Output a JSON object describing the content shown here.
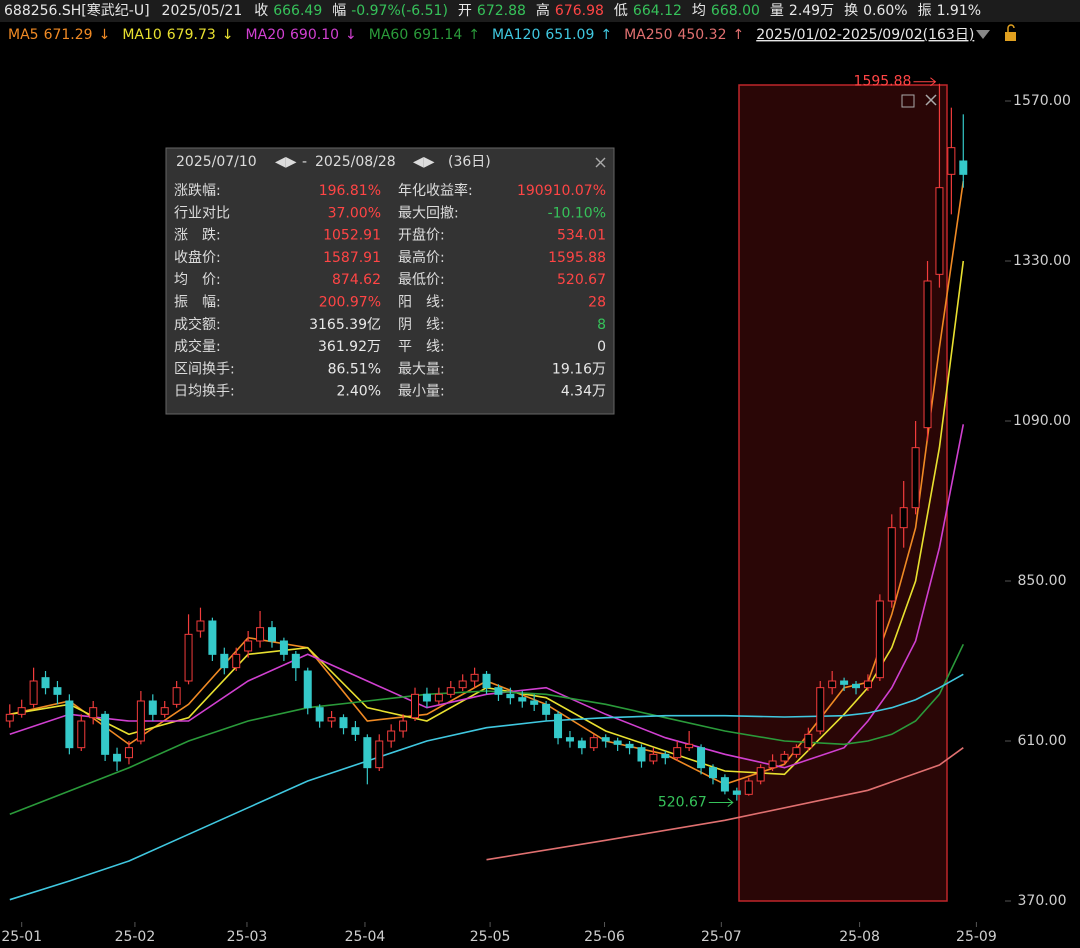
{
  "header": {
    "symbol": "688256.SH[寒武纪-U]",
    "date": "2025/05/21",
    "quote": [
      {
        "label": "收",
        "value": "666.49",
        "tone": "down"
      },
      {
        "label": "幅",
        "value": "-0.97%(-6.51)",
        "tone": "down"
      },
      {
        "label": "开",
        "value": "672.88",
        "tone": "down"
      },
      {
        "label": "高",
        "value": "676.98",
        "tone": "up"
      },
      {
        "label": "低",
        "value": "664.12",
        "tone": "down"
      },
      {
        "label": "均",
        "value": "668.00",
        "tone": "down"
      },
      {
        "label": "量",
        "value": "2.49万",
        "tone": "plain"
      },
      {
        "label": "换",
        "value": "0.60%",
        "tone": "plain"
      },
      {
        "label": "振",
        "value": "1.91%",
        "tone": "plain"
      }
    ],
    "ma_legend": [
      {
        "value": "671.29",
        "arrow": "↓"
      },
      {
        "value": "679.73",
        "arrow": "↓"
      },
      {
        "value": "690.10",
        "arrow": "↓"
      },
      {
        "value": "691.14",
        "arrow": "↑"
      },
      {
        "value": "651.09",
        "arrow": "↑"
      },
      {
        "value": "450.32",
        "arrow": "↑"
      }
    ],
    "range": "2025/01/02-2025/09/02(163日)"
  },
  "panel": {
    "start": "2025/07/10",
    "end": "2025/08/28",
    "days": "(36日)",
    "rows": [
      [
        {
          "label": "涨跌幅:",
          "value": "196.81%",
          "tone": "up"
        },
        {
          "label": "年化收益率:",
          "value": "190910.07%",
          "tone": "up"
        }
      ],
      [
        {
          "label": "行业对比",
          "value": "37.00%",
          "tone": "up"
        },
        {
          "label": "最大回撤:",
          "value": "-10.10%",
          "tone": "down"
        }
      ],
      [
        {
          "label": "涨　跌:",
          "value": "1052.91",
          "tone": "up"
        },
        {
          "label": "开盘价:",
          "value": "534.01",
          "tone": "up"
        }
      ],
      [
        {
          "label": "收盘价:",
          "value": "1587.91",
          "tone": "up"
        },
        {
          "label": "最高价:",
          "value": "1595.88",
          "tone": "up"
        }
      ],
      [
        {
          "label": "均　价:",
          "value": "874.62",
          "tone": "up"
        },
        {
          "label": "最低价:",
          "value": "520.67",
          "tone": "up"
        }
      ],
      [
        {
          "label": "振　幅:",
          "value": "200.97%",
          "tone": "up"
        },
        {
          "label": "阳　线:",
          "value": "28",
          "tone": "up"
        }
      ],
      [
        {
          "label": "成交额:",
          "value": "3165.39亿",
          "tone": "plain"
        },
        {
          "label": "阴　线:",
          "value": "8",
          "tone": "down"
        }
      ],
      [
        {
          "label": "成交量:",
          "value": "361.92万",
          "tone": "plain"
        },
        {
          "label": "平　线:",
          "value": "0",
          "tone": "plain"
        }
      ],
      [
        {
          "label": "区间换手:",
          "value": "86.51%",
          "tone": "plain"
        },
        {
          "label": "最大量:",
          "value": "19.16万",
          "tone": "plain"
        }
      ],
      [
        {
          "label": "日均换手:",
          "value": "2.40%",
          "tone": "plain"
        },
        {
          "label": "最小量:",
          "value": "4.34万",
          "tone": "plain"
        }
      ]
    ]
  },
  "chart_data": {
    "type": "candlestick",
    "up_color": "#f23c3c",
    "down_color": "#35c9c9",
    "xlim": [
      -0.4,
      83.5
    ],
    "ylim": [
      349,
      1654
    ],
    "xticks": [
      {
        "value": 1,
        "label": "25-01"
      },
      {
        "value": 10.5,
        "label": "25-02"
      },
      {
        "value": 19.9,
        "label": "25-03"
      },
      {
        "value": 29.8,
        "label": "25-04"
      },
      {
        "value": 40.3,
        "label": "25-05"
      },
      {
        "value": 49.9,
        "label": "25-06"
      },
      {
        "value": 59.7,
        "label": "25-07"
      },
      {
        "value": 71.3,
        "label": "25-08"
      },
      {
        "value": 81.1,
        "label": "25-09"
      }
    ],
    "yticks": [
      {
        "value": 370,
        "label": "370.00"
      },
      {
        "value": 610,
        "label": "610.00"
      },
      {
        "value": 850,
        "label": "850.00"
      },
      {
        "value": 1090,
        "label": "1090.00"
      },
      {
        "value": 1330,
        "label": "1330.00"
      },
      {
        "value": 1570,
        "label": "1570.00"
      }
    ],
    "candles": [
      [
        640,
        665,
        630,
        650
      ],
      [
        650,
        672,
        645,
        660
      ],
      [
        665,
        720,
        660,
        700
      ],
      [
        705,
        715,
        680,
        690
      ],
      [
        690,
        700,
        665,
        680
      ],
      [
        670,
        680,
        590,
        600
      ],
      [
        600,
        650,
        595,
        640
      ],
      [
        645,
        670,
        635,
        660
      ],
      [
        650,
        655,
        580,
        590
      ],
      [
        590,
        600,
        565,
        580
      ],
      [
        585,
        610,
        575,
        600
      ],
      [
        610,
        685,
        605,
        670
      ],
      [
        670,
        680,
        640,
        650
      ],
      [
        650,
        670,
        645,
        660
      ],
      [
        665,
        700,
        660,
        690
      ],
      [
        700,
        800,
        695,
        770
      ],
      [
        775,
        810,
        765,
        790
      ],
      [
        790,
        795,
        730,
        740
      ],
      [
        740,
        750,
        710,
        720
      ],
      [
        720,
        750,
        715,
        740
      ],
      [
        745,
        775,
        735,
        760
      ],
      [
        760,
        805,
        750,
        780
      ],
      [
        780,
        790,
        750,
        760
      ],
      [
        760,
        765,
        730,
        740
      ],
      [
        740,
        745,
        700,
        720
      ],
      [
        715,
        720,
        650,
        660
      ],
      [
        660,
        665,
        630,
        640
      ],
      [
        640,
        655,
        630,
        645
      ],
      [
        645,
        650,
        620,
        630
      ],
      [
        630,
        640,
        610,
        620
      ],
      [
        615,
        620,
        545,
        570
      ],
      [
        570,
        620,
        565,
        610
      ],
      [
        610,
        635,
        600,
        625
      ],
      [
        625,
        650,
        615,
        640
      ],
      [
        645,
        690,
        640,
        680
      ],
      [
        680,
        690,
        660,
        670
      ],
      [
        670,
        690,
        665,
        680
      ],
      [
        680,
        700,
        675,
        690
      ],
      [
        690,
        710,
        685,
        700
      ],
      [
        700,
        720,
        690,
        710
      ],
      [
        710,
        715,
        680,
        690
      ],
      [
        690,
        695,
        670,
        680
      ],
      [
        680,
        690,
        665,
        675
      ],
      [
        675,
        685,
        660,
        670
      ],
      [
        670,
        680,
        655,
        665
      ],
      [
        665,
        670,
        640,
        650
      ],
      [
        650,
        655,
        605,
        615
      ],
      [
        615,
        625,
        600,
        610
      ],
      [
        610,
        615,
        590,
        600
      ],
      [
        600,
        620,
        595,
        615
      ],
      [
        615,
        620,
        600,
        610
      ],
      [
        610,
        615,
        595,
        605
      ],
      [
        605,
        610,
        590,
        600
      ],
      [
        600,
        605,
        570,
        580
      ],
      [
        580,
        600,
        575,
        590
      ],
      [
        590,
        595,
        575,
        585
      ],
      [
        585,
        610,
        580,
        600
      ],
      [
        600,
        625,
        595,
        605
      ],
      [
        600,
        605,
        560,
        570
      ],
      [
        570,
        575,
        545,
        555
      ],
      [
        555,
        560,
        530,
        535
      ],
      [
        535,
        540,
        520.67,
        530
      ],
      [
        530,
        555,
        528,
        550
      ],
      [
        550,
        575,
        545,
        570
      ],
      [
        570,
        590,
        565,
        580
      ],
      [
        580,
        595,
        575,
        590
      ],
      [
        590,
        605,
        585,
        600
      ],
      [
        600,
        630,
        595,
        620
      ],
      [
        625,
        700,
        620,
        690
      ],
      [
        690,
        715,
        680,
        700
      ],
      [
        700,
        705,
        685,
        695
      ],
      [
        695,
        700,
        680,
        690
      ],
      [
        690,
        710,
        685,
        700
      ],
      [
        705,
        830,
        700,
        820
      ],
      [
        820,
        950,
        810,
        930
      ],
      [
        930,
        1000,
        900,
        960
      ],
      [
        960,
        1090,
        950,
        1050
      ],
      [
        1080,
        1330,
        1060,
        1300
      ],
      [
        1310,
        1595.88,
        1290,
        1440
      ],
      [
        1460,
        1560,
        1400,
        1500
      ],
      [
        1480,
        1550,
        1440,
        1460
      ]
    ],
    "series": [
      {
        "name": "MA5",
        "color": "#f08a24",
        "x": [
          0,
          5,
          10,
          15,
          20,
          25,
          30,
          35,
          40,
          45,
          50,
          55,
          60,
          65,
          70,
          72,
          74,
          76,
          78,
          80
        ],
        "values": [
          650,
          670,
          605,
          665,
          765,
          750,
          640,
          650,
          700,
          665,
          610,
          590,
          545,
          575,
          690,
          698,
          800,
          930,
          1200,
          1450
        ]
      },
      {
        "name": "MA10",
        "color": "#e8e030",
        "x": [
          0,
          5,
          10,
          15,
          20,
          25,
          30,
          35,
          40,
          45,
          50,
          55,
          60,
          65,
          70,
          72,
          74,
          76,
          78,
          80
        ],
        "values": [
          650,
          665,
          620,
          645,
          740,
          750,
          660,
          640,
          690,
          675,
          625,
          595,
          565,
          560,
          650,
          690,
          750,
          850,
          1050,
          1330
        ]
      },
      {
        "name": "MA20",
        "color": "#d040d0",
        "x": [
          0,
          5,
          10,
          15,
          20,
          25,
          30,
          35,
          40,
          45,
          50,
          55,
          60,
          65,
          70,
          72,
          74,
          76,
          78,
          80
        ],
        "values": [
          620,
          650,
          640,
          640,
          700,
          740,
          700,
          660,
          680,
          690,
          650,
          615,
          590,
          570,
          600,
          640,
          690,
          760,
          900,
          1085
        ]
      },
      {
        "name": "MA60",
        "color": "#2a9a3a",
        "x": [
          0,
          5,
          10,
          15,
          20,
          25,
          30,
          35,
          40,
          45,
          50,
          55,
          60,
          65,
          70,
          72,
          74,
          76,
          78,
          80
        ],
        "values": [
          500,
          535,
          570,
          610,
          640,
          660,
          670,
          680,
          685,
          680,
          665,
          645,
          625,
          610,
          605,
          610,
          620,
          640,
          680,
          755
        ]
      },
      {
        "name": "MA120",
        "color": "#40c8e0",
        "x": [
          0,
          5,
          10,
          15,
          20,
          25,
          30,
          35,
          40,
          45,
          50,
          55,
          60,
          65,
          70,
          72,
          74,
          76,
          78,
          80
        ],
        "values": [
          372,
          400,
          430,
          470,
          510,
          550,
          580,
          610,
          630,
          640,
          645,
          648,
          648,
          646,
          648,
          652,
          660,
          672,
          690,
          710
        ]
      },
      {
        "name": "MA250",
        "color": "#e07070",
        "x": [
          40,
          50,
          60,
          72,
          78,
          80
        ],
        "values": [
          432,
          461,
          491,
          536,
          574,
          600
        ]
      }
    ],
    "annotations": [
      {
        "text": "1595.88",
        "tone": "up"
      },
      {
        "text": "520.67",
        "tone": "down"
      }
    ]
  }
}
